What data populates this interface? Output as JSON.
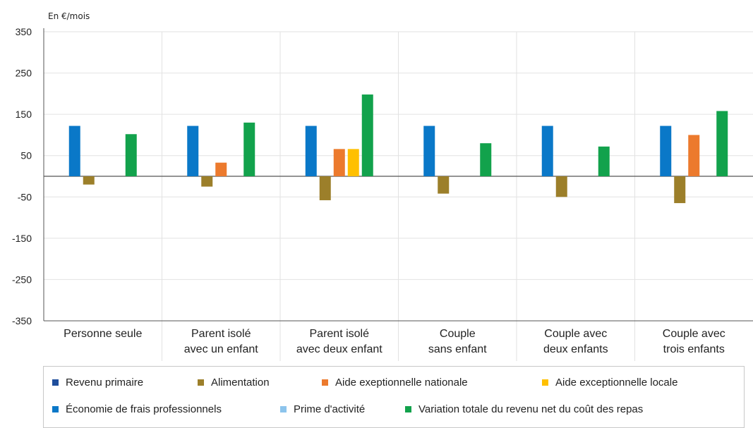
{
  "chart_data": {
    "type": "bar",
    "unit_label": "En €/mois",
    "ylim": [
      -350,
      350
    ],
    "yticks": [
      350,
      250,
      150,
      50,
      -50,
      -150,
      -250,
      -350
    ],
    "categories": [
      [
        "Personne seule"
      ],
      [
        "Parent isolé",
        "avec un enfant"
      ],
      [
        "Parent isolé",
        "avec deux enfant"
      ],
      [
        "Couple",
        "sans enfant"
      ],
      [
        "Couple avec",
        "deux enfants"
      ],
      [
        "Couple avec",
        "trois enfants"
      ]
    ],
    "series": [
      {
        "name": "Revenu primaire",
        "color": "#1f4e9c",
        "values": [
          0,
          0,
          0,
          0,
          0,
          0
        ]
      },
      {
        "name": "Économie de frais professionnels",
        "color": "#0a78c8",
        "values": [
          122,
          122,
          122,
          122,
          122,
          122
        ]
      },
      {
        "name": "Alimentation",
        "color": "#9c7f2a",
        "values": [
          -20,
          -25,
          -58,
          -42,
          -50,
          -65
        ]
      },
      {
        "name": "Aide exeptionnelle nationale",
        "color": "#ec7a2d",
        "values": [
          0,
          33,
          66,
          0,
          0,
          100
        ]
      },
      {
        "name": "Aide exceptionnelle locale",
        "color": "#ffc000",
        "values": [
          0,
          0,
          66,
          0,
          0,
          0
        ]
      },
      {
        "name": "Prime d'activité",
        "color": "#8cc4ec",
        "values": [
          0,
          0,
          0,
          0,
          0,
          0
        ]
      },
      {
        "name": "Variation totale du revenu net du coût des repas",
        "color": "#12a24c",
        "values": [
          102,
          130,
          198,
          80,
          72,
          158
        ]
      }
    ],
    "grid": true
  },
  "legend": {
    "row1": [
      {
        "label": "Revenu primaire",
        "color": "#1f4e9c"
      },
      {
        "label": "Alimentation",
        "color": "#9c7f2a"
      },
      {
        "label": "Aide exeptionnelle nationale",
        "color": "#ec7a2d"
      },
      {
        "label": "Aide exceptionnelle locale",
        "color": "#ffc000"
      }
    ],
    "row2": [
      {
        "label": "Économie de frais professionnels",
        "color": "#0a78c8"
      },
      {
        "label": "Prime d'activité",
        "color": "#8cc4ec"
      },
      {
        "label": "Variation totale du revenu net du coût des repas",
        "color": "#12a24c"
      }
    ]
  }
}
